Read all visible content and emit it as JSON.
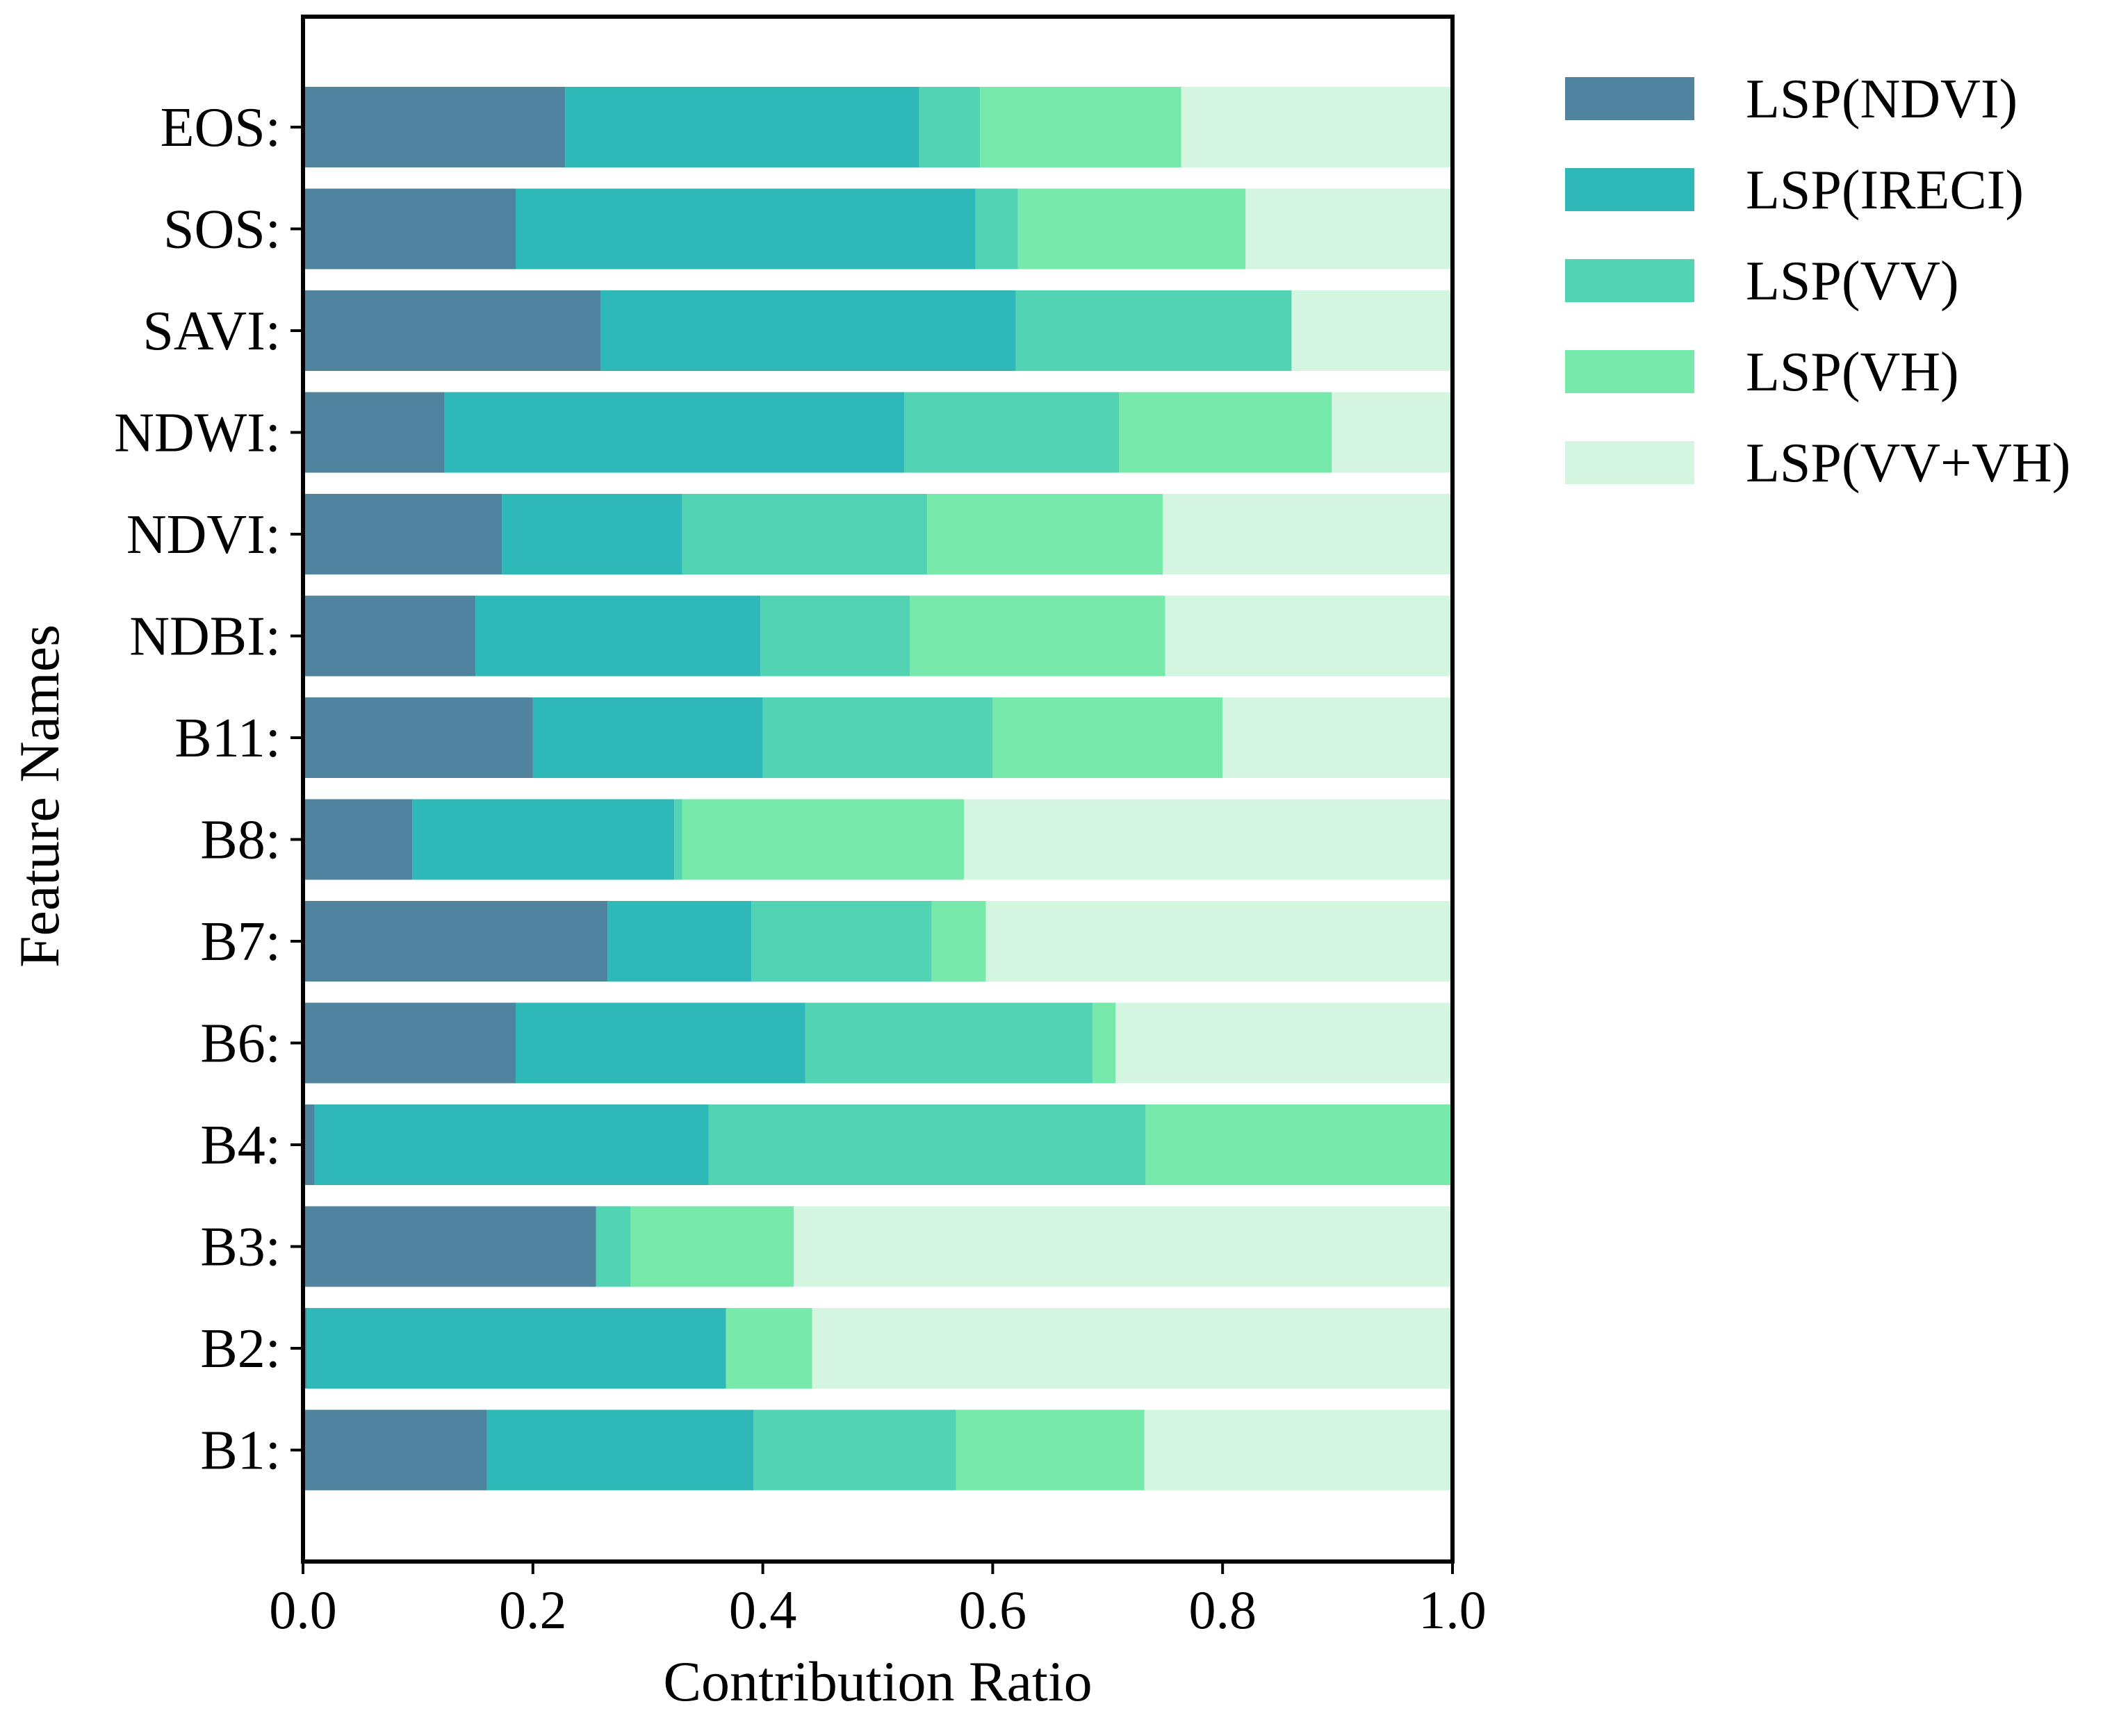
{
  "chart_data": {
    "type": "bar",
    "orientation": "horizontal",
    "stacked": true,
    "xlabel": "Contribution Ratio",
    "ylabel": "Feature Names",
    "xlim": [
      0,
      1.0
    ],
    "x_ticks": [
      "0.0",
      "0.2",
      "0.4",
      "0.6",
      "0.8",
      "1.0"
    ],
    "grid": false,
    "legend_position": "outside-top-right",
    "categories": [
      "EOS:",
      "SOS:",
      "SAVI:",
      "NDWI:",
      "NDVI:",
      "NDBI:",
      "B11:",
      "B8:",
      "B7:",
      "B6:",
      "B4:",
      "B3:",
      "B2:",
      "B1:"
    ],
    "series": [
      {
        "name": "LSP(NDVI)",
        "color": "#4f839e",
        "values": [
          0.228,
          0.185,
          0.259,
          0.123,
          0.173,
          0.15,
          0.2,
          0.095,
          0.265,
          0.185,
          0.01,
          0.255,
          0.003,
          0.16
        ]
      },
      {
        "name": "LSP(IRECI)",
        "color": "#2eb8b8",
        "values": [
          0.308,
          0.4,
          0.361,
          0.4,
          0.157,
          0.248,
          0.2,
          0.228,
          0.125,
          0.252,
          0.343,
          0.0,
          0.365,
          0.232
        ]
      },
      {
        "name": "LSP(VV)",
        "color": "#52d4b4",
        "values": [
          0.053,
          0.037,
          0.24,
          0.187,
          0.213,
          0.13,
          0.2,
          0.007,
          0.157,
          0.25,
          0.38,
          0.03,
          0.0,
          0.176
        ]
      },
      {
        "name": "LSP(VH)",
        "color": "#77e9ab",
        "values": [
          0.175,
          0.198,
          0.0,
          0.185,
          0.205,
          0.222,
          0.2,
          0.245,
          0.047,
          0.02,
          0.267,
          0.142,
          0.075,
          0.164
        ]
      },
      {
        "name": "LSP(VV+VH)",
        "color": "#d4f5e0",
        "values": [
          0.236,
          0.18,
          0.14,
          0.105,
          0.252,
          0.25,
          0.2,
          0.425,
          0.406,
          0.293,
          0.0,
          0.573,
          0.557,
          0.268
        ]
      }
    ]
  }
}
